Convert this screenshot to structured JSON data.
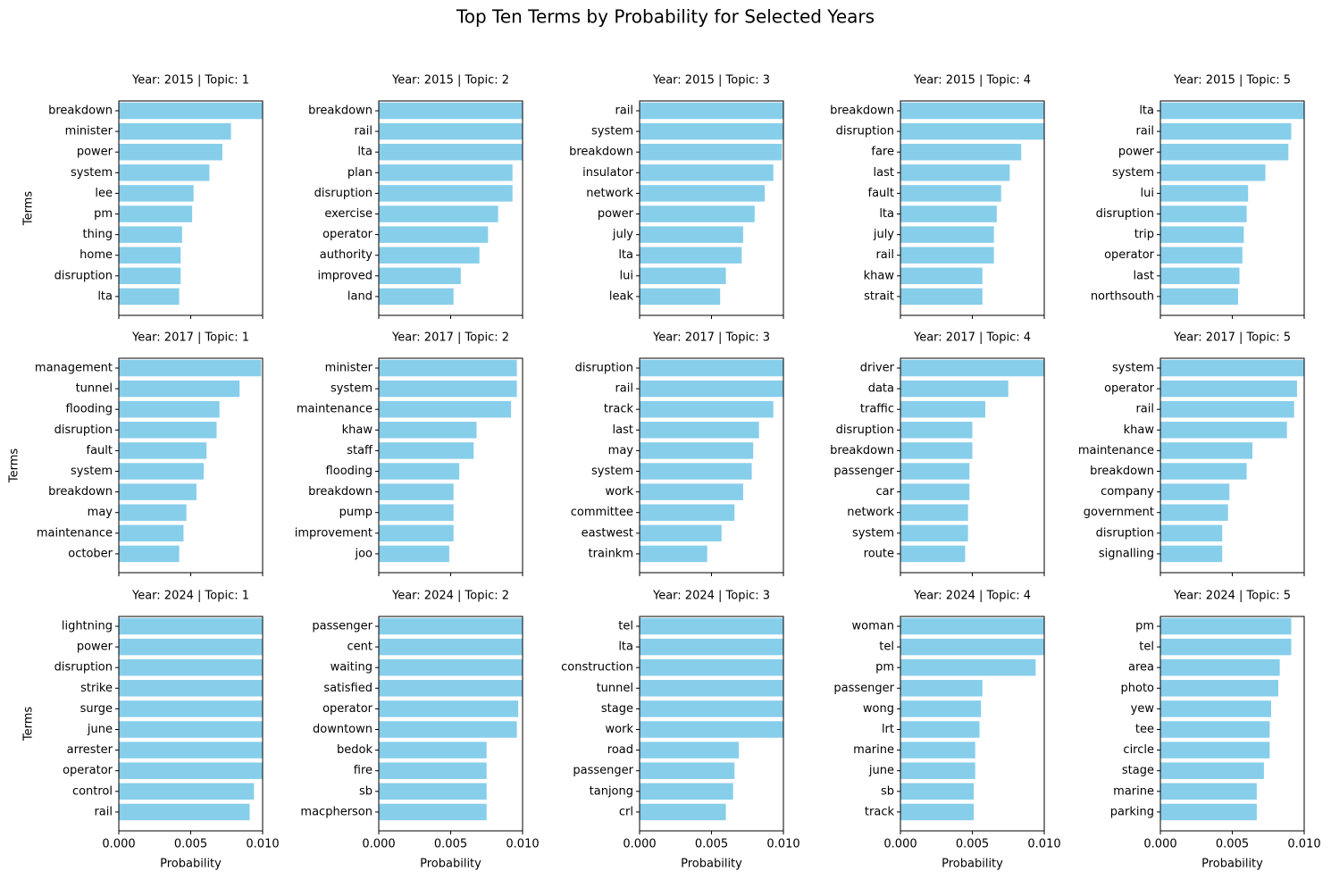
{
  "title": "Top Ten Terms by Probability for Selected Years",
  "chart_data": [
    {
      "type": "barh",
      "title": "Year: 2015 | Topic: 1",
      "ylabel": "Terms",
      "categories": [
        "breakdown",
        "minister",
        "power",
        "system",
        "lee",
        "pm",
        "thing",
        "home",
        "disruption",
        "lta"
      ],
      "values": [
        0.0101,
        0.0078,
        0.0072,
        0.0063,
        0.0052,
        0.0051,
        0.0044,
        0.0043,
        0.0043,
        0.0042
      ],
      "color": "#87ceeb",
      "xlim": [
        0,
        0.01
      ],
      "xticks": [
        0,
        0.005,
        0.01
      ]
    },
    {
      "type": "barh",
      "title": "Year: 2015 | Topic: 2",
      "categories": [
        "breakdown",
        "rail",
        "lta",
        "plan",
        "disruption",
        "exercise",
        "operator",
        "authority",
        "improved",
        "land"
      ],
      "values": [
        0.0101,
        0.0101,
        0.0101,
        0.0093,
        0.0093,
        0.0083,
        0.0076,
        0.007,
        0.0057,
        0.0052
      ],
      "color": "#87ceeb",
      "xlim": [
        0,
        0.01
      ],
      "xticks": [
        0,
        0.005,
        0.01
      ]
    },
    {
      "type": "barh",
      "title": "Year: 2015 | Topic: 3",
      "categories": [
        "rail",
        "system",
        "breakdown",
        "insulator",
        "network",
        "power",
        "july",
        "lta",
        "lui",
        "leak"
      ],
      "values": [
        0.0101,
        0.0101,
        0.0099,
        0.0093,
        0.0087,
        0.008,
        0.0072,
        0.0071,
        0.006,
        0.0056
      ],
      "color": "#87ceeb",
      "xlim": [
        0,
        0.01
      ],
      "xticks": [
        0,
        0.005,
        0.01
      ]
    },
    {
      "type": "barh",
      "title": "Year: 2015 | Topic: 4",
      "categories": [
        "breakdown",
        "disruption",
        "fare",
        "last",
        "fault",
        "lta",
        "july",
        "rail",
        "khaw",
        "strait"
      ],
      "values": [
        0.0101,
        0.0101,
        0.0084,
        0.0076,
        0.007,
        0.0067,
        0.0065,
        0.0065,
        0.0057,
        0.0057
      ],
      "color": "#87ceeb",
      "xlim": [
        0,
        0.01
      ],
      "xticks": [
        0,
        0.005,
        0.01
      ]
    },
    {
      "type": "barh",
      "title": "Year: 2015 | Topic: 5",
      "categories": [
        "lta",
        "rail",
        "power",
        "system",
        "lui",
        "disruption",
        "trip",
        "operator",
        "last",
        "northsouth"
      ],
      "values": [
        0.0101,
        0.0091,
        0.0089,
        0.0073,
        0.0061,
        0.006,
        0.0058,
        0.0057,
        0.0055,
        0.0054
      ],
      "color": "#87ceeb",
      "xlim": [
        0,
        0.01
      ],
      "xticks": [
        0,
        0.005,
        0.01
      ]
    },
    {
      "type": "barh",
      "title": "Year: 2017 | Topic: 1",
      "ylabel": "Terms",
      "categories": [
        "management",
        "tunnel",
        "flooding",
        "disruption",
        "fault",
        "system",
        "breakdown",
        "may",
        "maintenance",
        "october"
      ],
      "values": [
        0.0099,
        0.0084,
        0.007,
        0.0068,
        0.0061,
        0.0059,
        0.0054,
        0.0047,
        0.0045,
        0.0042
      ],
      "color": "#87ceeb",
      "xlim": [
        0,
        0.01
      ],
      "xticks": [
        0,
        0.005,
        0.01
      ]
    },
    {
      "type": "barh",
      "title": "Year: 2017 | Topic: 2",
      "categories": [
        "minister",
        "system",
        "maintenance",
        "khaw",
        "staff",
        "flooding",
        "breakdown",
        "pump",
        "improvement",
        "joo"
      ],
      "values": [
        0.0096,
        0.0096,
        0.0092,
        0.0068,
        0.0066,
        0.0056,
        0.0052,
        0.0052,
        0.0052,
        0.0049
      ],
      "color": "#87ceeb",
      "xlim": [
        0,
        0.01
      ],
      "xticks": [
        0,
        0.005,
        0.01
      ]
    },
    {
      "type": "barh",
      "title": "Year: 2017 | Topic: 3",
      "categories": [
        "disruption",
        "rail",
        "track",
        "last",
        "may",
        "system",
        "work",
        "committee",
        "eastwest",
        "trainkm"
      ],
      "values": [
        0.0101,
        0.0101,
        0.0093,
        0.0083,
        0.0079,
        0.0078,
        0.0072,
        0.0066,
        0.0057,
        0.0047
      ],
      "color": "#87ceeb",
      "xlim": [
        0,
        0.01
      ],
      "xticks": [
        0,
        0.005,
        0.01
      ]
    },
    {
      "type": "barh",
      "title": "Year: 2017 | Topic: 4",
      "categories": [
        "driver",
        "data",
        "traffic",
        "disruption",
        "breakdown",
        "passenger",
        "car",
        "network",
        "system",
        "route"
      ],
      "values": [
        0.0101,
        0.0075,
        0.0059,
        0.005,
        0.005,
        0.0048,
        0.0048,
        0.0047,
        0.0047,
        0.0045
      ],
      "color": "#87ceeb",
      "xlim": [
        0,
        0.01
      ],
      "xticks": [
        0,
        0.005,
        0.01
      ]
    },
    {
      "type": "barh",
      "title": "Year: 2017 | Topic: 5",
      "categories": [
        "system",
        "operator",
        "rail",
        "khaw",
        "maintenance",
        "breakdown",
        "company",
        "government",
        "disruption",
        "signalling"
      ],
      "values": [
        0.0101,
        0.0095,
        0.0093,
        0.0088,
        0.0064,
        0.006,
        0.0048,
        0.0047,
        0.0043,
        0.0043
      ],
      "color": "#87ceeb",
      "xlim": [
        0,
        0.01
      ],
      "xticks": [
        0,
        0.005,
        0.01
      ]
    },
    {
      "type": "barh",
      "title": "Year: 2024 | Topic: 1",
      "ylabel": "Terms",
      "xlabel": "Probability",
      "categories": [
        "lightning",
        "power",
        "disruption",
        "strike",
        "surge",
        "june",
        "arrester",
        "operator",
        "control",
        "rail"
      ],
      "values": [
        0.0101,
        0.0101,
        0.0101,
        0.0101,
        0.0101,
        0.0101,
        0.0101,
        0.0101,
        0.0094,
        0.0091
      ],
      "color": "#87ceeb",
      "xlim": [
        0,
        0.01
      ],
      "xticks": [
        {
          "value": 0,
          "label": "0.000"
        },
        {
          "value": 0.005,
          "label": "0.005"
        },
        {
          "value": 0.01,
          "label": "0.010"
        }
      ]
    },
    {
      "type": "barh",
      "title": "Year: 2024 | Topic: 2",
      "xlabel": "Probability",
      "categories": [
        "passenger",
        "cent",
        "waiting",
        "satisfied",
        "operator",
        "downtown",
        "bedok",
        "fire",
        "sb",
        "macpherson"
      ],
      "values": [
        0.0101,
        0.0101,
        0.0101,
        0.0101,
        0.0097,
        0.0096,
        0.0075,
        0.0075,
        0.0075,
        0.0075
      ],
      "color": "#87ceeb",
      "xlim": [
        0,
        0.01
      ],
      "xticks": [
        {
          "value": 0,
          "label": "0.000"
        },
        {
          "value": 0.005,
          "label": "0.005"
        },
        {
          "value": 0.01,
          "label": "0.010"
        }
      ]
    },
    {
      "type": "barh",
      "title": "Year: 2024 | Topic: 3",
      "xlabel": "Probability",
      "categories": [
        "tel",
        "lta",
        "construction",
        "tunnel",
        "stage",
        "work",
        "road",
        "passenger",
        "tanjong",
        "crl"
      ],
      "values": [
        0.0101,
        0.0101,
        0.0101,
        0.0101,
        0.0101,
        0.0101,
        0.0069,
        0.0066,
        0.0065,
        0.006
      ],
      "color": "#87ceeb",
      "xlim": [
        0,
        0.01
      ],
      "xticks": [
        {
          "value": 0,
          "label": "0.000"
        },
        {
          "value": 0.005,
          "label": "0.005"
        },
        {
          "value": 0.01,
          "label": "0.010"
        }
      ]
    },
    {
      "type": "barh",
      "title": "Year: 2024 | Topic: 4",
      "xlabel": "Probability",
      "categories": [
        "woman",
        "tel",
        "pm",
        "passenger",
        "wong",
        "lrt",
        "marine",
        "june",
        "sb",
        "track"
      ],
      "values": [
        0.0101,
        0.0101,
        0.0094,
        0.0057,
        0.0056,
        0.0055,
        0.0052,
        0.0052,
        0.0051,
        0.0051
      ],
      "color": "#87ceeb",
      "xlim": [
        0,
        0.01
      ],
      "xticks": [
        {
          "value": 0,
          "label": "0.000"
        },
        {
          "value": 0.005,
          "label": "0.005"
        },
        {
          "value": 0.01,
          "label": "0.010"
        }
      ]
    },
    {
      "type": "barh",
      "title": "Year: 2024 | Topic: 5",
      "xlabel": "Probability",
      "categories": [
        "pm",
        "tel",
        "area",
        "photo",
        "yew",
        "tee",
        "circle",
        "stage",
        "marine",
        "parking"
      ],
      "values": [
        0.0091,
        0.0091,
        0.0083,
        0.0082,
        0.0077,
        0.0076,
        0.0076,
        0.0072,
        0.0067,
        0.0067
      ],
      "color": "#87ceeb",
      "xlim": [
        0,
        0.01
      ],
      "xticks": [
        {
          "value": 0,
          "label": "0.000"
        },
        {
          "value": 0.005,
          "label": "0.005"
        },
        {
          "value": 0.01,
          "label": "0.010"
        }
      ]
    }
  ]
}
